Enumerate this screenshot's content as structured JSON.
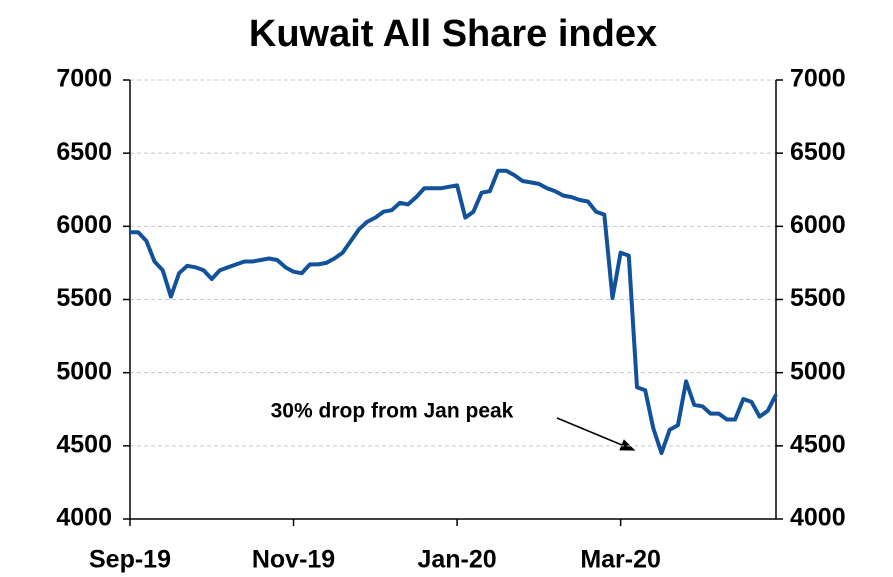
{
  "chart_data": {
    "type": "line",
    "title": "Kuwait All Share index",
    "categories": [
      "Sep-19",
      null,
      null,
      null,
      null,
      null,
      null,
      null,
      null,
      null,
      null,
      null,
      null,
      null,
      null,
      null,
      null,
      null,
      null,
      null,
      "Nov-19",
      null,
      null,
      null,
      null,
      null,
      null,
      null,
      null,
      null,
      null,
      null,
      null,
      null,
      null,
      null,
      null,
      null,
      null,
      null,
      "Jan-20",
      null,
      null,
      null,
      null,
      null,
      null,
      null,
      null,
      null,
      null,
      null,
      null,
      null,
      null,
      null,
      null,
      null,
      null,
      null,
      "Mar-20",
      null,
      null,
      null,
      null,
      null,
      null,
      null,
      null,
      null,
      null,
      null,
      null,
      null,
      null,
      null,
      null,
      null,
      null,
      null
    ],
    "series": [
      {
        "name": "Kuwait All Share index",
        "color": "#12529a",
        "values": [
          5960,
          5960,
          5900,
          5760,
          5700,
          5520,
          5680,
          5730,
          5720,
          5700,
          5640,
          5700,
          5720,
          5740,
          5760,
          5760,
          5770,
          5780,
          5770,
          5720,
          5690,
          5680,
          5740,
          5740,
          5750,
          5780,
          5820,
          5900,
          5980,
          6030,
          6060,
          6100,
          6110,
          6160,
          6150,
          6200,
          6260,
          6260,
          6260,
          6270,
          6280,
          6060,
          6100,
          6230,
          6240,
          6380,
          6380,
          6350,
          6310,
          6300,
          6290,
          6260,
          6240,
          6210,
          6200,
          6180,
          6170,
          6100,
          6080,
          5510,
          5820,
          5800,
          4900,
          4880,
          4620,
          4450,
          4610,
          4640,
          4940,
          4780,
          4770,
          4720,
          4720,
          4680,
          4680,
          4820,
          4800,
          4700,
          4740,
          4850
        ]
      }
    ],
    "ylim": [
      4000,
      7000
    ],
    "yticks": [
      4000,
      4500,
      5000,
      5500,
      6000,
      6500,
      7000
    ],
    "y2lim": [
      4000,
      7000
    ],
    "y2ticks": [
      4000,
      4500,
      5000,
      5500,
      6000,
      6500,
      7000
    ],
    "grid": true,
    "annotations": [
      {
        "text": "30% drop from Jan peak"
      }
    ]
  }
}
